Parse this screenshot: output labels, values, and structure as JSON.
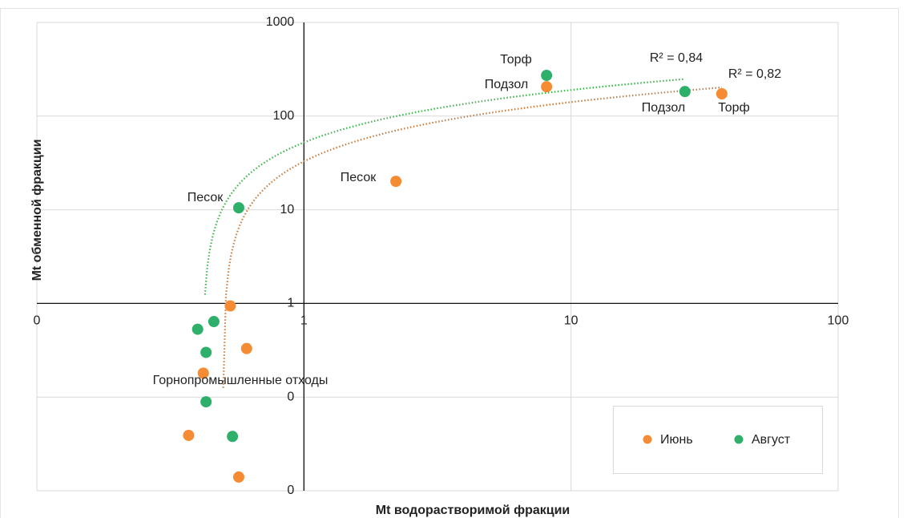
{
  "chart_data": {
    "type": "scatter",
    "x_label": "Mt водорастворимой фракции",
    "y_label": "Mt обменной фракции",
    "log_x": true,
    "log_y": true,
    "grid": true,
    "legend": "lower right",
    "xlim": [
      0.1,
      100
    ],
    "xticks": [
      {
        "value": 0.1,
        "label": "0"
      },
      1,
      10,
      100
    ],
    "ylim": [
      0.01,
      1000
    ],
    "yticks": [
      {
        "value": 0.01,
        "label": "0"
      },
      {
        "value": 0.1,
        "label": "0"
      },
      1,
      10,
      100,
      1000
    ],
    "series": [
      {
        "name": "Июнь",
        "color": "#f58b32",
        "x": [
          8.1,
          36.7,
          2.21,
          0.53,
          0.61,
          0.42,
          0.37,
          0.57
        ],
        "values": [
          206,
          173,
          20.1,
          0.94,
          0.33,
          0.18,
          0.039,
          0.014
        ]
      },
      {
        "name": "Август",
        "color": "#2eb06a",
        "x": [
          8.1,
          26.7,
          0.57,
          0.46,
          0.4,
          0.43,
          0.43,
          0.54
        ],
        "values": [
          272,
          183,
          10.5,
          0.64,
          0.53,
          0.3,
          0.089,
          0.038
        ]
      }
    ],
    "annotations": [
      "Торф",
      "Подзол",
      "Песок",
      "Подзол",
      "Торф",
      "Песок",
      "Горнопромышленные  отходы",
      "R² = 0,84",
      "R² = 0,82"
    ]
  }
}
